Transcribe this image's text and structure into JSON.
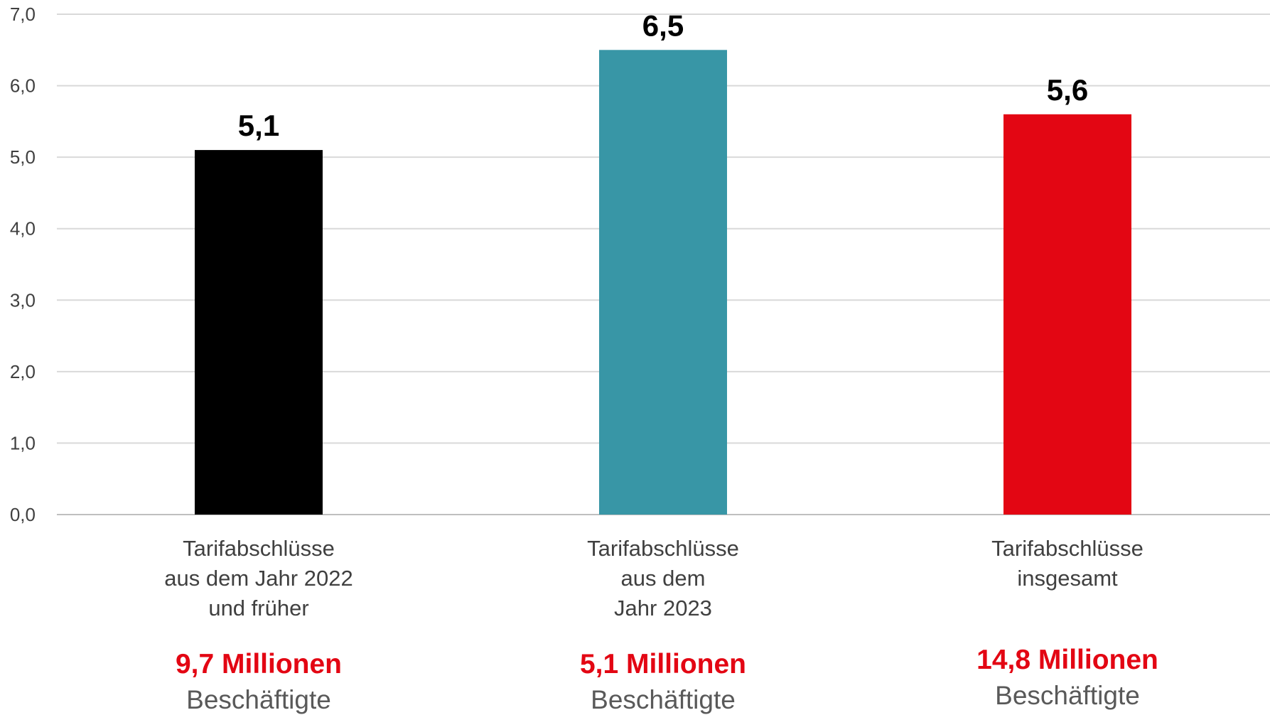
{
  "chart_data": {
    "type": "bar",
    "title": "",
    "xlabel": "",
    "ylabel": "",
    "ylim": [
      0,
      7
    ],
    "yticks": [
      0,
      1,
      2,
      3,
      4,
      5,
      6,
      7
    ],
    "ytick_labels": [
      "0,0",
      "1,0",
      "2,0",
      "3,0",
      "4,0",
      "5,0",
      "6,0",
      "7,0"
    ],
    "grid": true,
    "legend": "none",
    "categories": [
      {
        "label_lines": [
          "Tarifabschlüsse",
          "aus dem Jahr 2022",
          "und früher"
        ],
        "value": 5.1,
        "value_label": "5,1",
        "color": "#000000",
        "employees": "9,7 Millionen",
        "employees_label": "Beschäftigte"
      },
      {
        "label_lines": [
          "Tarifabschlüsse",
          "aus dem",
          "Jahr 2023"
        ],
        "value": 6.5,
        "value_label": "6,5",
        "color": "#3896a6",
        "employees": "5,1 Millionen",
        "employees_label": "Beschäftigte"
      },
      {
        "label_lines": [
          "Tarifabschlüsse",
          "insgesamt"
        ],
        "value": 5.6,
        "value_label": "5,6",
        "color": "#e30613",
        "employees": "14,8 Millionen",
        "employees_label": "Beschäftigte"
      }
    ]
  }
}
